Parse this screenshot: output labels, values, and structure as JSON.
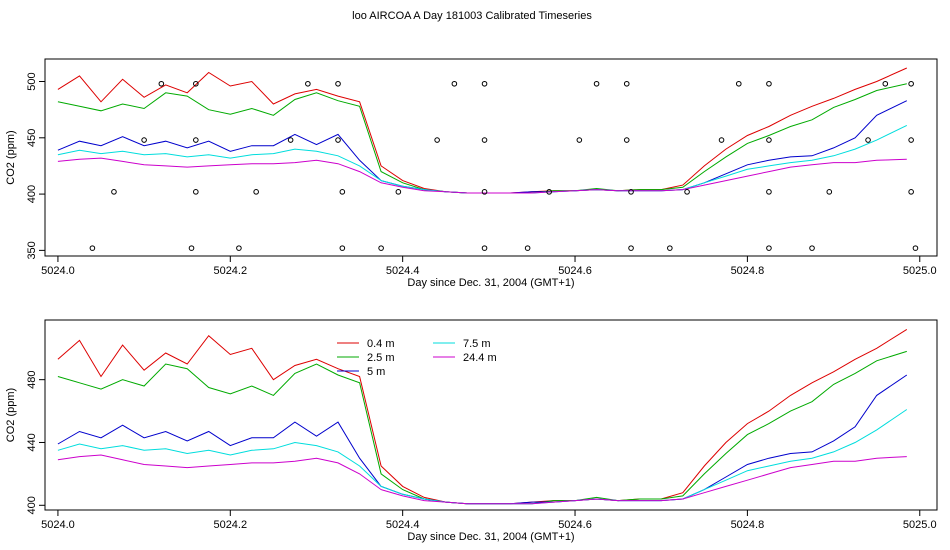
{
  "title": "loo AIRCOA A  Day 181003  Calibrated Timeseries",
  "colors": {
    "0.4 m": "#dd0000",
    "2.5 m": "#00aa00",
    "5 m": "#0000cc",
    "7.5 m": "#00dddd",
    "24.4 m": "#cc00cc",
    "points": "#000000"
  },
  "chart_data": [
    {
      "type": "line",
      "xlabel": "Day since Dec. 31, 2004 (GMT+1)",
      "ylabel": "CO2 (ppm)",
      "xlim": [
        5023.985,
        5025.02
      ],
      "ylim": [
        345,
        520
      ],
      "xticks": [
        "5024.0",
        "5024.2",
        "5024.4",
        "5024.6",
        "5024.8",
        "5025.0"
      ],
      "yticks": [
        "350",
        "400",
        "450",
        "500"
      ],
      "x": [
        5024.0,
        5024.025,
        5024.05,
        5024.075,
        5024.1,
        5024.125,
        5024.15,
        5024.175,
        5024.2,
        5024.225,
        5024.25,
        5024.275,
        5024.3,
        5024.325,
        5024.35,
        5024.375,
        5024.4,
        5024.425,
        5024.45,
        5024.475,
        5024.5,
        5024.525,
        5024.55,
        5024.575,
        5024.6,
        5024.625,
        5024.65,
        5024.675,
        5024.7,
        5024.725,
        5024.75,
        5024.775,
        5024.8,
        5024.825,
        5024.85,
        5024.875,
        5024.9,
        5024.925,
        5024.95,
        5024.985
      ],
      "series": [
        {
          "name": "0.4 m",
          "values": [
            493,
            505,
            482,
            502,
            486,
            497,
            490,
            508,
            496,
            500,
            480,
            489,
            493,
            487,
            482,
            425,
            412,
            405,
            402,
            401,
            401,
            401,
            402,
            403,
            403,
            404,
            403,
            404,
            404,
            408,
            425,
            440,
            452,
            460,
            470,
            478,
            485,
            493,
            500,
            512
          ]
        },
        {
          "name": "2.5 m",
          "values": [
            482,
            478,
            474,
            480,
            476,
            490,
            487,
            475,
            471,
            476,
            470,
            484,
            490,
            483,
            478,
            420,
            410,
            404,
            402,
            401,
            401,
            401,
            401,
            403,
            403,
            405,
            403,
            404,
            404,
            406,
            420,
            433,
            445,
            452,
            460,
            466,
            477,
            484,
            492,
            498
          ]
        },
        {
          "name": "5 m",
          "values": [
            439,
            447,
            443,
            451,
            443,
            447,
            441,
            447,
            438,
            443,
            443,
            453,
            444,
            453,
            430,
            412,
            407,
            404,
            402,
            401,
            401,
            401,
            402,
            402,
            403,
            404,
            403,
            403,
            403,
            404,
            410,
            418,
            426,
            430,
            433,
            434,
            441,
            450,
            470,
            483
          ]
        },
        {
          "name": "7.5 m",
          "values": [
            435,
            439,
            436,
            438,
            435,
            436,
            433,
            435,
            432,
            435,
            436,
            440,
            438,
            434,
            425,
            412,
            407,
            404,
            402,
            401,
            401,
            401,
            401,
            402,
            403,
            404,
            403,
            403,
            403,
            404,
            410,
            416,
            422,
            425,
            428,
            430,
            434,
            440,
            448,
            461
          ]
        },
        {
          "name": "24.4 m",
          "values": [
            429,
            431,
            432,
            429,
            426,
            425,
            424,
            425,
            426,
            427,
            427,
            428,
            430,
            427,
            420,
            410,
            406,
            403,
            402,
            401,
            401,
            401,
            401,
            402,
            403,
            404,
            403,
            403,
            403,
            404,
            408,
            412,
            416,
            420,
            424,
            426,
            428,
            428,
            430,
            431
          ]
        }
      ],
      "points": [
        {
          "x": 5024.04,
          "y": 352
        },
        {
          "x": 5024.065,
          "y": 402
        },
        {
          "x": 5024.1,
          "y": 448
        },
        {
          "x": 5024.12,
          "y": 498
        },
        {
          "x": 5024.155,
          "y": 352
        },
        {
          "x": 5024.16,
          "y": 402
        },
        {
          "x": 5024.16,
          "y": 448
        },
        {
          "x": 5024.16,
          "y": 498
        },
        {
          "x": 5024.21,
          "y": 352
        },
        {
          "x": 5024.23,
          "y": 402
        },
        {
          "x": 5024.27,
          "y": 448
        },
        {
          "x": 5024.29,
          "y": 498
        },
        {
          "x": 5024.33,
          "y": 352
        },
        {
          "x": 5024.33,
          "y": 402
        },
        {
          "x": 5024.325,
          "y": 448
        },
        {
          "x": 5024.325,
          "y": 498
        },
        {
          "x": 5024.375,
          "y": 352
        },
        {
          "x": 5024.395,
          "y": 402
        },
        {
          "x": 5024.44,
          "y": 448
        },
        {
          "x": 5024.46,
          "y": 498
        },
        {
          "x": 5024.495,
          "y": 352
        },
        {
          "x": 5024.495,
          "y": 402
        },
        {
          "x": 5024.495,
          "y": 448
        },
        {
          "x": 5024.495,
          "y": 498
        },
        {
          "x": 5024.545,
          "y": 352
        },
        {
          "x": 5024.57,
          "y": 402
        },
        {
          "x": 5024.605,
          "y": 448
        },
        {
          "x": 5024.625,
          "y": 498
        },
        {
          "x": 5024.665,
          "y": 352
        },
        {
          "x": 5024.665,
          "y": 402
        },
        {
          "x": 5024.66,
          "y": 448
        },
        {
          "x": 5024.66,
          "y": 498
        },
        {
          "x": 5024.71,
          "y": 352
        },
        {
          "x": 5024.73,
          "y": 402
        },
        {
          "x": 5024.77,
          "y": 448
        },
        {
          "x": 5024.79,
          "y": 498
        },
        {
          "x": 5024.825,
          "y": 352
        },
        {
          "x": 5024.825,
          "y": 402
        },
        {
          "x": 5024.825,
          "y": 448
        },
        {
          "x": 5024.825,
          "y": 498
        },
        {
          "x": 5024.875,
          "y": 352
        },
        {
          "x": 5024.895,
          "y": 402
        },
        {
          "x": 5024.94,
          "y": 448
        },
        {
          "x": 5024.96,
          "y": 498
        },
        {
          "x": 5024.995,
          "y": 352
        },
        {
          "x": 5024.99,
          "y": 402
        },
        {
          "x": 5024.99,
          "y": 448
        },
        {
          "x": 5024.99,
          "y": 498
        }
      ]
    },
    {
      "type": "line",
      "xlabel": "Day since Dec. 31, 2004 (GMT+1)",
      "ylabel": "CO2 (ppm)",
      "xlim": [
        5023.985,
        5025.02
      ],
      "ylim": [
        397,
        518
      ],
      "xticks": [
        "5024.0",
        "5024.2",
        "5024.4",
        "5024.6",
        "5024.8",
        "5025.0"
      ],
      "yticks": [
        "400",
        "440",
        "480"
      ],
      "legend": [
        "0.4 m",
        "2.5 m",
        "5 m",
        "7.5 m",
        "24.4 m"
      ],
      "x": [
        5024.0,
        5024.025,
        5024.05,
        5024.075,
        5024.1,
        5024.125,
        5024.15,
        5024.175,
        5024.2,
        5024.225,
        5024.25,
        5024.275,
        5024.3,
        5024.325,
        5024.35,
        5024.375,
        5024.4,
        5024.425,
        5024.45,
        5024.475,
        5024.5,
        5024.525,
        5024.55,
        5024.575,
        5024.6,
        5024.625,
        5024.65,
        5024.675,
        5024.7,
        5024.725,
        5024.75,
        5024.775,
        5024.8,
        5024.825,
        5024.85,
        5024.875,
        5024.9,
        5024.925,
        5024.95,
        5024.985
      ],
      "series": [
        {
          "name": "0.4 m",
          "values": [
            493,
            505,
            482,
            502,
            486,
            497,
            490,
            508,
            496,
            500,
            480,
            489,
            493,
            487,
            482,
            425,
            412,
            405,
            402,
            401,
            401,
            401,
            402,
            403,
            403,
            404,
            403,
            404,
            404,
            408,
            425,
            440,
            452,
            460,
            470,
            478,
            485,
            493,
            500,
            512
          ]
        },
        {
          "name": "2.5 m",
          "values": [
            482,
            478,
            474,
            480,
            476,
            490,
            487,
            475,
            471,
            476,
            470,
            484,
            490,
            483,
            478,
            420,
            410,
            404,
            402,
            401,
            401,
            401,
            401,
            403,
            403,
            405,
            403,
            404,
            404,
            406,
            420,
            433,
            445,
            452,
            460,
            466,
            477,
            484,
            492,
            498
          ]
        },
        {
          "name": "5 m",
          "values": [
            439,
            447,
            443,
            451,
            443,
            447,
            441,
            447,
            438,
            443,
            443,
            453,
            444,
            453,
            430,
            412,
            407,
            404,
            402,
            401,
            401,
            401,
            402,
            402,
            403,
            404,
            403,
            403,
            403,
            404,
            410,
            418,
            426,
            430,
            433,
            434,
            441,
            450,
            470,
            483
          ]
        },
        {
          "name": "7.5 m",
          "values": [
            435,
            439,
            436,
            438,
            435,
            436,
            433,
            435,
            432,
            435,
            436,
            440,
            438,
            434,
            425,
            412,
            407,
            404,
            402,
            401,
            401,
            401,
            401,
            402,
            403,
            404,
            403,
            403,
            403,
            404,
            410,
            416,
            422,
            425,
            428,
            430,
            434,
            440,
            448,
            461
          ]
        },
        {
          "name": "24.4 m",
          "values": [
            429,
            431,
            432,
            429,
            426,
            425,
            424,
            425,
            426,
            427,
            427,
            428,
            430,
            427,
            420,
            410,
            406,
            403,
            402,
            401,
            401,
            401,
            401,
            402,
            403,
            404,
            403,
            403,
            403,
            404,
            408,
            412,
            416,
            420,
            424,
            426,
            428,
            428,
            430,
            431
          ]
        }
      ]
    }
  ]
}
